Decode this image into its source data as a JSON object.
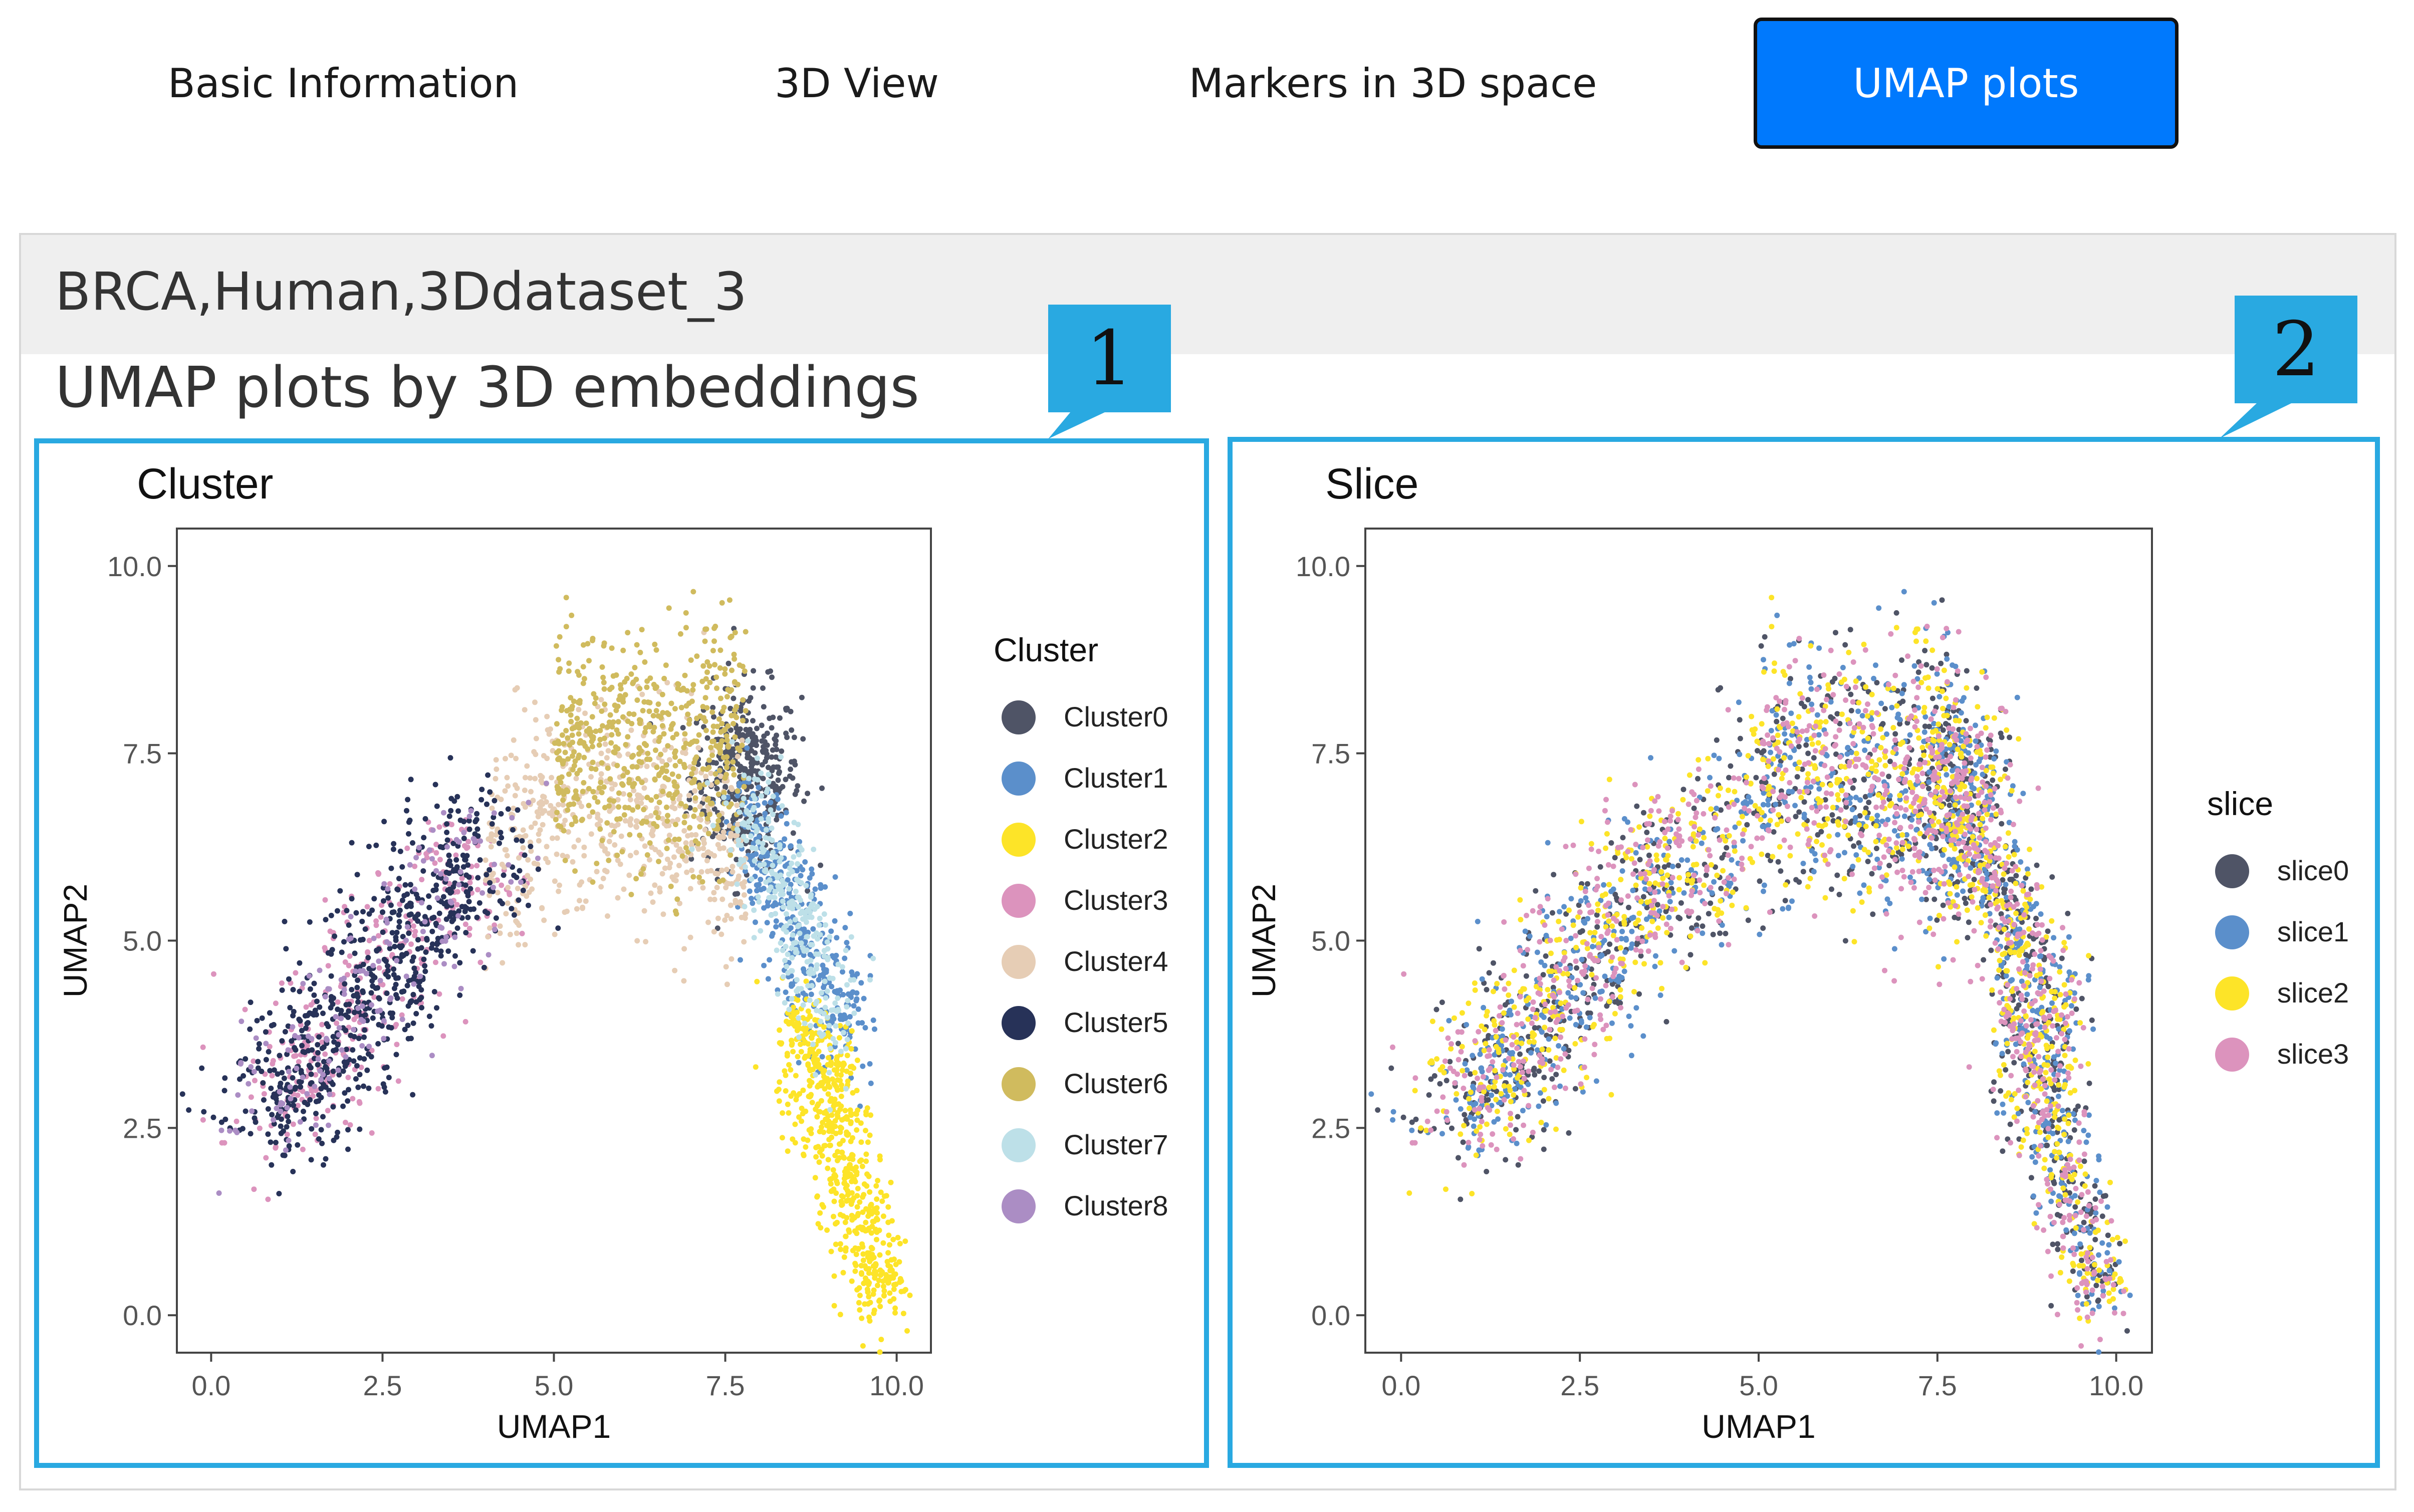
{
  "tabs": [
    {
      "label": "Basic Information",
      "active": false
    },
    {
      "label": "3D View",
      "active": false
    },
    {
      "label": "Markers in 3D space",
      "active": false
    },
    {
      "label": "UMAP plots",
      "active": true
    }
  ],
  "panel": {
    "dataset_title": "BRCA,Human,3Ddataset_3",
    "section_title": "UMAP plots by 3D embeddings"
  },
  "callouts": [
    "1",
    "2"
  ],
  "colors": {
    "tab_active": "#0079fd",
    "callout": "#29a9e1",
    "Cluster0": "#4f5466",
    "Cluster1": "#5b8fcb",
    "Cluster2": "#fde428",
    "Cluster3": "#dc93bd",
    "Cluster4": "#e6cdb5",
    "Cluster5": "#273258",
    "Cluster6": "#d0bb5e",
    "Cluster7": "#bde0e8",
    "Cluster8": "#ab8dc4"
  },
  "chart_data": [
    {
      "type": "scatter",
      "title": "Cluster",
      "xlabel": "UMAP1",
      "ylabel": "UMAP2",
      "xlim": [
        -0.5,
        10.5
      ],
      "ylim": [
        -0.5,
        10.5
      ],
      "x_ticks": [
        "0.0",
        "2.5",
        "5.0",
        "7.5",
        "10.0"
      ],
      "y_ticks": [
        "0.0",
        "2.5",
        "5.0",
        "7.5",
        "10.0"
      ],
      "grid": false,
      "legend_title": "Cluster",
      "legend_position": "right",
      "series": [
        {
          "name": "Cluster0",
          "color": "#4f5466",
          "approx_center": [
            8.2,
            7.2
          ]
        },
        {
          "name": "Cluster1",
          "color": "#5b8fcb",
          "approx_center": [
            8.6,
            5.2
          ]
        },
        {
          "name": "Cluster2",
          "color": "#fde428",
          "approx_center": [
            9.0,
            2.5
          ]
        },
        {
          "name": "Cluster3",
          "color": "#dc93bd",
          "approx_center": [
            2.6,
            4.5
          ]
        },
        {
          "name": "Cluster4",
          "color": "#e6cdb5",
          "approx_center": [
            5.8,
            7.0
          ]
        },
        {
          "name": "Cluster5",
          "color": "#273258",
          "approx_center": [
            2.5,
            5.0
          ]
        },
        {
          "name": "Cluster6",
          "color": "#d0bb5e",
          "approx_center": [
            6.5,
            8.2
          ]
        },
        {
          "name": "Cluster7",
          "color": "#bde0e8",
          "approx_center": [
            8.3,
            5.0
          ]
        },
        {
          "name": "Cluster8",
          "color": "#ab8dc4",
          "approx_center": [
            2.3,
            4.2
          ]
        }
      ]
    },
    {
      "type": "scatter",
      "title": "Slice",
      "xlabel": "UMAP1",
      "ylabel": "UMAP2",
      "xlim": [
        -0.5,
        10.5
      ],
      "ylim": [
        -0.5,
        10.5
      ],
      "x_ticks": [
        "0.0",
        "2.5",
        "5.0",
        "7.5",
        "10.0"
      ],
      "y_ticks": [
        "0.0",
        "2.5",
        "5.0",
        "7.5",
        "10.0"
      ],
      "grid": false,
      "legend_title": "slice",
      "legend_position": "right",
      "series": [
        {
          "name": "slice0",
          "color": "#4f5466"
        },
        {
          "name": "slice1",
          "color": "#5b8fcb"
        },
        {
          "name": "slice2",
          "color": "#fde428"
        },
        {
          "name": "slice3",
          "color": "#dc93bd"
        }
      ]
    }
  ]
}
